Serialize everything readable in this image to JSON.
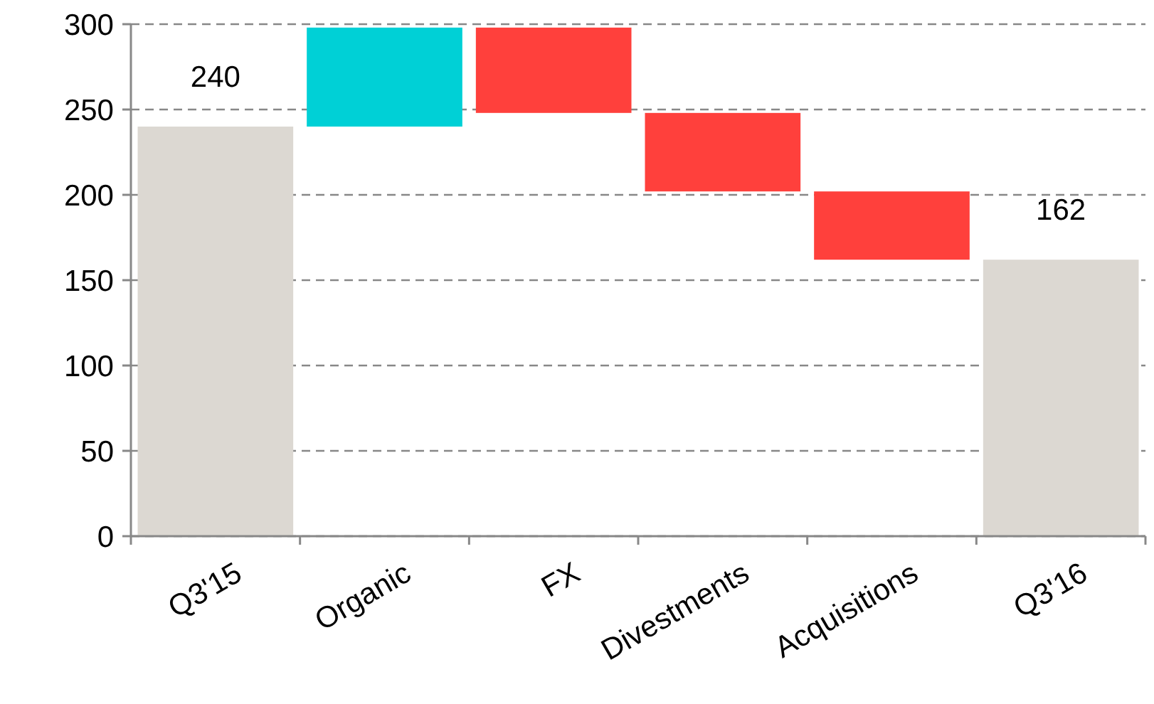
{
  "chart_data": {
    "type": "bar",
    "categories": [
      "Q3'15",
      "Organic",
      "FX",
      "Divestments",
      "Acquisitions",
      "Q3'16"
    ],
    "values": [
      240,
      58,
      -50,
      -46,
      -40,
      162
    ],
    "base": [
      0,
      240,
      298,
      248,
      202,
      0
    ],
    "colors": [
      "#dcd8d2",
      "#00d0d6",
      "#ff403c",
      "#ff403c",
      "#ff403c",
      "#dcd8d2"
    ],
    "value_labels": [
      "240",
      null,
      null,
      null,
      null,
      "162"
    ],
    "ylim": [
      0,
      300
    ],
    "yticks": [
      0,
      50,
      100,
      150,
      200,
      250,
      300
    ],
    "grid": "y"
  }
}
